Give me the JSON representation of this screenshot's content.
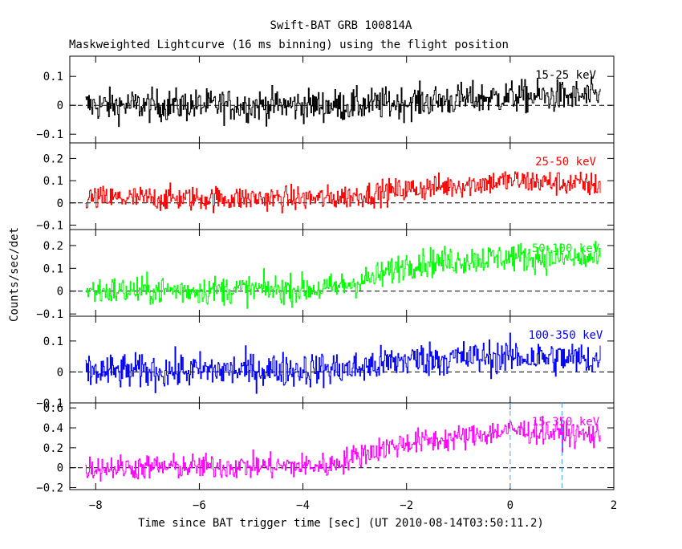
{
  "header": {
    "title": "Swift-BAT GRB 100814A",
    "subtitle": "Maskweighted Lightcurve (16 ms binning) using the flight position"
  },
  "chart_data": {
    "type": "line",
    "xlabel": "Time since BAT trigger time [sec] (UT 2010-08-14T03:50:11.2)",
    "ylabel": "Counts/sec/det",
    "xlim": [
      -8.5,
      2.0
    ],
    "x_ticks": [
      -8,
      -6,
      -4,
      -2,
      0,
      2
    ],
    "x_tick_labels": [
      "−8",
      "−6",
      "−4",
      "−2",
      "0",
      "2"
    ],
    "bin_size": 0.016,
    "x_start": -8.2,
    "x_end": 1.75,
    "vertical_markers": [
      0,
      1.0
    ],
    "vertical_marker_color": "#4aa3ff",
    "panels": [
      {
        "name": "15-25 keV",
        "color": "#000000",
        "ylim": [
          -0.13,
          0.17
        ],
        "y_ticks": [
          -0.1,
          0,
          0.1
        ],
        "y_tick_labels": [
          "−0.1",
          "0",
          "0.1"
        ],
        "trend": [
          [
            -8.2,
            0.0
          ],
          [
            -3.0,
            0.0
          ],
          [
            -1.0,
            0.02
          ],
          [
            0.0,
            0.03
          ],
          [
            1.75,
            0.03
          ]
        ],
        "noise": 0.04
      },
      {
        "name": "25-50 keV",
        "color": "#ff0000",
        "ylim": [
          -0.12,
          0.27
        ],
        "y_ticks": [
          -0.1,
          0,
          0.1,
          0.2
        ],
        "y_tick_labels": [
          "−0.1",
          "0",
          "0.1",
          "0.2"
        ],
        "trend": [
          [
            -8.2,
            0.02
          ],
          [
            -3.5,
            0.02
          ],
          [
            -2.0,
            0.06
          ],
          [
            -1.0,
            0.08
          ],
          [
            0.0,
            0.1
          ],
          [
            1.75,
            0.08
          ]
        ],
        "noise": 0.04
      },
      {
        "name": "50-100 keV",
        "color": "#00ff00",
        "ylim": [
          -0.11,
          0.27
        ],
        "y_ticks": [
          -0.1,
          0,
          0.1,
          0.2
        ],
        "y_tick_labels": [
          "−0.1",
          "0",
          "0.1",
          "0.2"
        ],
        "trend": [
          [
            -8.2,
            0.0
          ],
          [
            -3.5,
            0.01
          ],
          [
            -2.6,
            0.06
          ],
          [
            -2.0,
            0.12
          ],
          [
            0.0,
            0.15
          ],
          [
            1.75,
            0.14
          ]
        ],
        "noise": 0.045
      },
      {
        "name": "100-350 keV",
        "color": "#0000ff",
        "ylim": [
          -0.1,
          0.18
        ],
        "y_ticks": [
          -0.1,
          0,
          0.1
        ],
        "y_tick_labels": [
          "−0.1",
          "0",
          "0.1"
        ],
        "trend": [
          [
            -8.2,
            0.0
          ],
          [
            -3.0,
            0.01
          ],
          [
            -2.0,
            0.04
          ],
          [
            0.0,
            0.05
          ],
          [
            1.75,
            0.04
          ]
        ],
        "noise": 0.04
      },
      {
        "name": "15-350 keV",
        "color": "#ff00ff",
        "ylim": [
          -0.22,
          0.65
        ],
        "y_ticks": [
          -0.2,
          0,
          0.2,
          0.4,
          0.6
        ],
        "y_tick_labels": [
          "−0.2",
          "0",
          "0.2",
          "0.4",
          "0.6"
        ],
        "trend": [
          [
            -8.2,
            0.0
          ],
          [
            -3.5,
            0.02
          ],
          [
            -2.8,
            0.15
          ],
          [
            -2.0,
            0.25
          ],
          [
            -1.0,
            0.3
          ],
          [
            0.0,
            0.38
          ],
          [
            1.75,
            0.32
          ]
        ],
        "noise": 0.09
      }
    ]
  }
}
